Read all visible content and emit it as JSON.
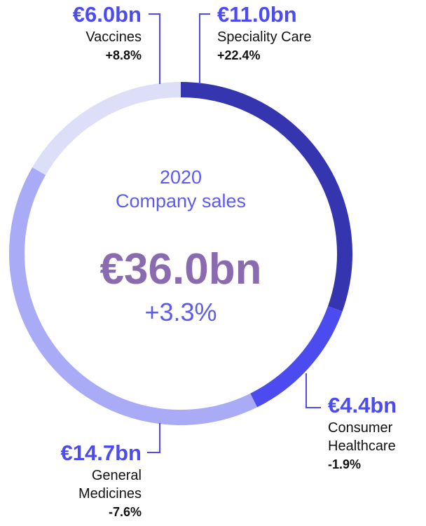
{
  "chart_data": {
    "type": "donut",
    "title_lines": [
      "2020",
      "Company sales"
    ],
    "total": 36.0,
    "total_label": "€36.0bn",
    "total_change": "+3.3%",
    "categories": [
      "Speciality Care",
      "Consumer Healthcare",
      "General Medicines",
      "Vaccines"
    ],
    "values": [
      11.0,
      4.4,
      14.7,
      6.0
    ],
    "value_labels": [
      "€11.0bn",
      "€4.4bn",
      "€14.7bn",
      "€6.0bn"
    ],
    "changes": [
      "+22.4%",
      "-1.9%",
      "-7.6%",
      "+8.8%"
    ],
    "colors": [
      "#3535b0",
      "#4b4bef",
      "#a9abf6",
      "#dddff9"
    ]
  }
}
